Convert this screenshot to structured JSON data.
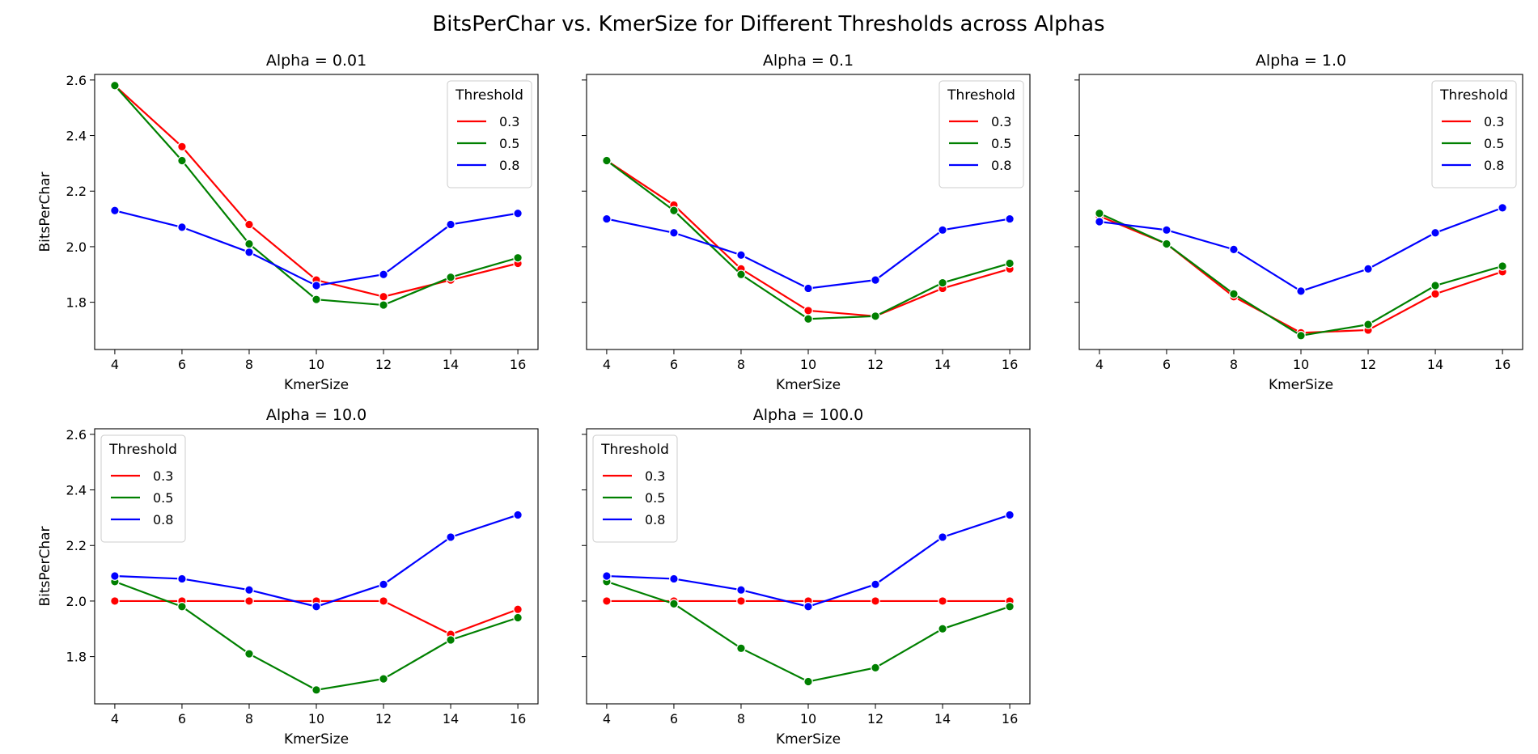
{
  "figure_title": "BitsPerChar vs. KmerSize for Different Thresholds across Alphas",
  "colors": {
    "0.3": "#ff0000",
    "0.5": "#008000",
    "0.8": "#0000ff"
  },
  "chart_data": [
    {
      "type": "line",
      "title": "Alpha = 0.01",
      "xlabel": "KmerSize",
      "ylabel": "BitsPerChar",
      "x": [
        4,
        6,
        8,
        10,
        12,
        14,
        16
      ],
      "xlim": [
        3.4,
        16.6
      ],
      "ylim": [
        1.63,
        2.62
      ],
      "xticks": [
        "4",
        "6",
        "8",
        "10",
        "12",
        "14",
        "16"
      ],
      "yticks": [
        "1.8",
        "2.0",
        "2.2",
        "2.4",
        "2.6"
      ],
      "show_yticklabels": true,
      "legend": {
        "title": "Threshold",
        "position": "upper right"
      },
      "series": [
        {
          "name": "0.3",
          "values": [
            2.58,
            2.36,
            2.08,
            1.88,
            1.82,
            1.88,
            1.94
          ]
        },
        {
          "name": "0.5",
          "values": [
            2.58,
            2.31,
            2.01,
            1.81,
            1.79,
            1.89,
            1.96
          ]
        },
        {
          "name": "0.8",
          "values": [
            2.13,
            2.07,
            1.98,
            1.86,
            1.9,
            2.08,
            2.12
          ]
        }
      ]
    },
    {
      "type": "line",
      "title": "Alpha = 0.1",
      "xlabel": "KmerSize",
      "ylabel": "",
      "x": [
        4,
        6,
        8,
        10,
        12,
        14,
        16
      ],
      "xlim": [
        3.4,
        16.6
      ],
      "ylim": [
        1.63,
        2.62
      ],
      "xticks": [
        "4",
        "6",
        "8",
        "10",
        "12",
        "14",
        "16"
      ],
      "yticks": [
        "1.8",
        "2.0",
        "2.2",
        "2.4",
        "2.6"
      ],
      "show_yticklabels": false,
      "legend": {
        "title": "Threshold",
        "position": "upper right"
      },
      "series": [
        {
          "name": "0.3",
          "values": [
            2.31,
            2.15,
            1.92,
            1.77,
            1.75,
            1.85,
            1.92
          ]
        },
        {
          "name": "0.5",
          "values": [
            2.31,
            2.13,
            1.9,
            1.74,
            1.75,
            1.87,
            1.94
          ]
        },
        {
          "name": "0.8",
          "values": [
            2.1,
            2.05,
            1.97,
            1.85,
            1.88,
            2.06,
            2.1
          ]
        }
      ]
    },
    {
      "type": "line",
      "title": "Alpha = 1.0",
      "xlabel": "KmerSize",
      "ylabel": "",
      "x": [
        4,
        6,
        8,
        10,
        12,
        14,
        16
      ],
      "xlim": [
        3.4,
        16.6
      ],
      "ylim": [
        1.63,
        2.62
      ],
      "xticks": [
        "4",
        "6",
        "8",
        "10",
        "12",
        "14",
        "16"
      ],
      "yticks": [
        "1.8",
        "2.0",
        "2.2",
        "2.4",
        "2.6"
      ],
      "show_yticklabels": false,
      "legend": {
        "title": "Threshold",
        "position": "upper right"
      },
      "series": [
        {
          "name": "0.3",
          "values": [
            2.11,
            2.01,
            1.82,
            1.69,
            1.7,
            1.83,
            1.91
          ]
        },
        {
          "name": "0.5",
          "values": [
            2.12,
            2.01,
            1.83,
            1.68,
            1.72,
            1.86,
            1.93
          ]
        },
        {
          "name": "0.8",
          "values": [
            2.09,
            2.06,
            1.99,
            1.84,
            1.92,
            2.05,
            2.14
          ]
        }
      ]
    },
    {
      "type": "line",
      "title": "Alpha = 10.0",
      "xlabel": "KmerSize",
      "ylabel": "BitsPerChar",
      "x": [
        4,
        6,
        8,
        10,
        12,
        14,
        16
      ],
      "xlim": [
        3.4,
        16.6
      ],
      "ylim": [
        1.63,
        2.62
      ],
      "xticks": [
        "4",
        "6",
        "8",
        "10",
        "12",
        "14",
        "16"
      ],
      "yticks": [
        "1.8",
        "2.0",
        "2.2",
        "2.4",
        "2.6"
      ],
      "show_yticklabels": true,
      "legend": {
        "title": "Threshold",
        "position": "upper left"
      },
      "series": [
        {
          "name": "0.3",
          "values": [
            2.0,
            2.0,
            2.0,
            2.0,
            2.0,
            1.88,
            1.97
          ]
        },
        {
          "name": "0.5",
          "values": [
            2.07,
            1.98,
            1.81,
            1.68,
            1.72,
            1.86,
            1.94
          ]
        },
        {
          "name": "0.8",
          "values": [
            2.09,
            2.08,
            2.04,
            1.98,
            2.06,
            2.23,
            2.31
          ]
        }
      ]
    },
    {
      "type": "line",
      "title": "Alpha = 100.0",
      "xlabel": "KmerSize",
      "ylabel": "",
      "x": [
        4,
        6,
        8,
        10,
        12,
        14,
        16
      ],
      "xlim": [
        3.4,
        16.6
      ],
      "ylim": [
        1.63,
        2.62
      ],
      "xticks": [
        "4",
        "6",
        "8",
        "10",
        "12",
        "14",
        "16"
      ],
      "yticks": [
        "1.8",
        "2.0",
        "2.2",
        "2.4",
        "2.6"
      ],
      "show_yticklabels": false,
      "legend": {
        "title": "Threshold",
        "position": "upper left"
      },
      "series": [
        {
          "name": "0.3",
          "values": [
            2.0,
            2.0,
            2.0,
            2.0,
            2.0,
            2.0,
            2.0
          ]
        },
        {
          "name": "0.5",
          "values": [
            2.07,
            1.99,
            1.83,
            1.71,
            1.76,
            1.9,
            1.98
          ]
        },
        {
          "name": "0.8",
          "values": [
            2.09,
            2.08,
            2.04,
            1.98,
            2.06,
            2.23,
            2.31
          ]
        }
      ]
    }
  ]
}
